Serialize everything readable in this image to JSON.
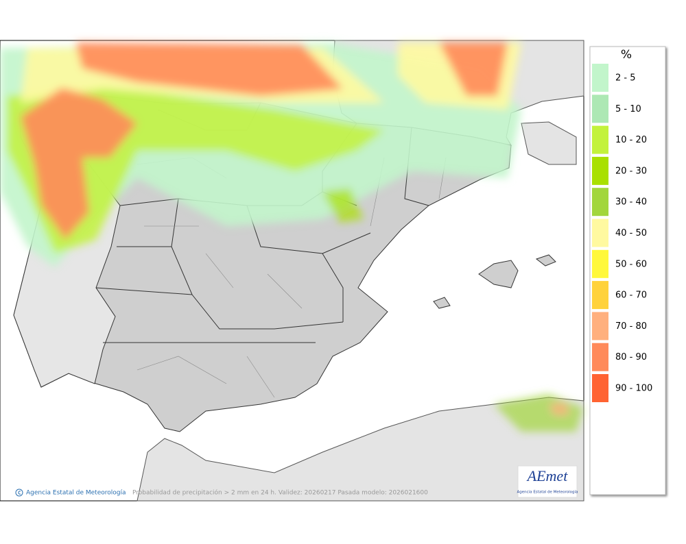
{
  "map": {
    "footer": {
      "agency": "Agencia Estatal de Meteorología",
      "caption": "Probabilidad de precipitación > 2 mm en 24 h. Validez: 20260217 Pasada modelo: 2026021600"
    },
    "logo": {
      "name": "AEmet",
      "subtitle": "Agencia Estatal de Meteorología"
    },
    "legend": {
      "title": "%",
      "items": [
        {
          "label": "2 - 5",
          "color": "#c2f5cb"
        },
        {
          "label": "5 - 10",
          "color": "#ade8b4"
        },
        {
          "label": "10 - 20",
          "color": "#c3f23c"
        },
        {
          "label": "20 - 30",
          "color": "#a9e000"
        },
        {
          "label": "30 - 40",
          "color": "#a2d63c"
        },
        {
          "label": "40 - 50",
          "color": "#fff9a0"
        },
        {
          "label": "50 - 60",
          "color": "#fff83c"
        },
        {
          "label": "60 - 70",
          "color": "#ffd23c"
        },
        {
          "label": "70 - 80",
          "color": "#ffb07e"
        },
        {
          "label": "80 - 90",
          "color": "#ff8a5a"
        },
        {
          "label": "90 - 100",
          "color": "#ff6332"
        }
      ]
    }
  }
}
